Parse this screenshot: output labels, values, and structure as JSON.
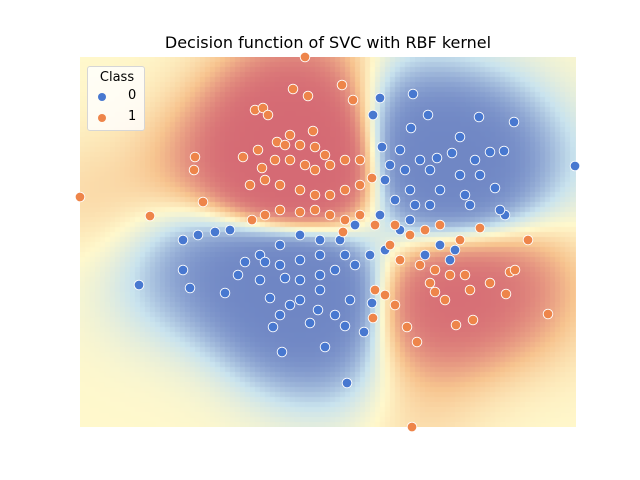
{
  "chart_data": {
    "type": "scatter",
    "title": "Decision function of SVC with RBF kernel",
    "axes_visible": false,
    "background": "heatmap of SVC decision function (blue = class 0, red = class 1)",
    "xlim": [
      -2.48,
      2.48
    ],
    "ylim": [
      -1.85,
      1.85
    ],
    "legend": {
      "title": "Class",
      "placement": "top-left"
    },
    "colors": {
      "class0": "#4878d0",
      "class1": "#ee854a",
      "bg_negative": "#6f86c4",
      "bg_neutral": "#fff8cc",
      "bg_positive": "#d56a74"
    },
    "series": [
      {
        "name": "0",
        "points": [
          [
            0.52,
            1.44
          ],
          [
            0.85,
            1.48
          ],
          [
            0.45,
            1.27
          ],
          [
            1.0,
            1.27
          ],
          [
            0.83,
            1.14
          ],
          [
            1.32,
            1.05
          ],
          [
            1.51,
            1.25
          ],
          [
            1.86,
            1.2
          ],
          [
            2.47,
            0.76
          ],
          [
            0.54,
            0.95
          ],
          [
            0.72,
            0.92
          ],
          [
            1.24,
            0.89
          ],
          [
            1.62,
            0.9
          ],
          [
            1.76,
            0.91
          ],
          [
            1.09,
            0.84
          ],
          [
            0.92,
            0.82
          ],
          [
            1.47,
            0.82
          ],
          [
            0.62,
            0.77
          ],
          [
            0.77,
            0.72
          ],
          [
            1.02,
            0.72
          ],
          [
            1.32,
            0.67
          ],
          [
            1.52,
            0.67
          ],
          [
            1.67,
            0.54
          ],
          [
            0.57,
            0.62
          ],
          [
            0.82,
            0.52
          ],
          [
            1.12,
            0.52
          ],
          [
            1.37,
            0.47
          ],
          [
            1.42,
            0.37
          ],
          [
            1.77,
            0.27
          ],
          [
            1.72,
            0.32
          ],
          [
            1.02,
            0.37
          ],
          [
            0.87,
            0.37
          ],
          [
            0.67,
            0.42
          ],
          [
            0.52,
            0.27
          ],
          [
            0.27,
            0.17
          ],
          [
            0.12,
            0.02
          ],
          [
            -0.08,
            0.02
          ],
          [
            -0.28,
            0.07
          ],
          [
            -0.48,
            -0.03
          ],
          [
            -0.68,
            -0.13
          ],
          [
            -0.98,
            0.12
          ],
          [
            -1.13,
            0.1
          ],
          [
            -1.3,
            0.07
          ],
          [
            -1.45,
            0.02
          ],
          [
            -1.45,
            -0.28
          ],
          [
            -1.38,
            -0.46
          ],
          [
            -1.89,
            -0.43
          ],
          [
            -1.03,
            -0.51
          ],
          [
            -0.9,
            -0.33
          ],
          [
            -0.83,
            -0.2
          ],
          [
            -0.63,
            -0.2
          ],
          [
            -0.48,
            -0.23
          ],
          [
            -0.28,
            -0.18
          ],
          [
            -0.08,
            -0.13
          ],
          [
            0.17,
            -0.13
          ],
          [
            0.27,
            -0.23
          ],
          [
            0.42,
            -0.13
          ],
          [
            0.57,
            -0.08
          ],
          [
            -0.28,
            -0.38
          ],
          [
            -0.43,
            -0.36
          ],
          [
            -0.08,
            -0.48
          ],
          [
            0.07,
            -0.28
          ],
          [
            -0.28,
            -0.58
          ],
          [
            -0.38,
            -0.63
          ],
          [
            -0.58,
            -0.56
          ],
          [
            -0.48,
            -0.73
          ],
          [
            -0.18,
            -0.81
          ],
          [
            -0.1,
            -0.68
          ],
          [
            -0.55,
            -0.85
          ],
          [
            -0.46,
            -1.1
          ],
          [
            -0.03,
            -1.05
          ],
          [
            0.17,
            -0.84
          ],
          [
            0.07,
            -0.73
          ],
          [
            0.36,
            -0.9
          ],
          [
            0.44,
            -0.61
          ],
          [
            0.19,
            -1.41
          ],
          [
            0.22,
            -0.58
          ],
          [
            -0.08,
            -0.33
          ],
          [
            -0.68,
            -0.38
          ],
          [
            0.97,
            -0.13
          ],
          [
            1.12,
            -0.03
          ],
          [
            1.27,
            -0.08
          ],
          [
            1.22,
            -0.18
          ],
          [
            0.72,
            0.12
          ],
          [
            0.82,
            0.22
          ]
        ]
      },
      {
        "name": "1",
        "points": [
          [
            -0.23,
            1.85
          ],
          [
            0.14,
            1.57
          ],
          [
            -0.35,
            1.53
          ],
          [
            -0.2,
            1.46
          ],
          [
            0.25,
            1.42
          ],
          [
            -0.73,
            1.32
          ],
          [
            -0.65,
            1.34
          ],
          [
            -0.6,
            1.27
          ],
          [
            -0.15,
            1.11
          ],
          [
            -0.38,
            1.07
          ],
          [
            -0.51,
            1.0
          ],
          [
            -0.43,
            0.97
          ],
          [
            -0.28,
            0.97
          ],
          [
            -0.13,
            0.95
          ],
          [
            -0.03,
            0.87
          ],
          [
            -0.85,
            0.85
          ],
          [
            -0.7,
            0.92
          ],
          [
            -1.33,
            0.85
          ],
          [
            -1.34,
            0.72
          ],
          [
            -0.66,
            0.74
          ],
          [
            -0.53,
            0.82
          ],
          [
            -0.38,
            0.82
          ],
          [
            -0.23,
            0.77
          ],
          [
            -0.13,
            0.72
          ],
          [
            0.02,
            0.77
          ],
          [
            0.17,
            0.82
          ],
          [
            0.32,
            0.82
          ],
          [
            -0.78,
            0.57
          ],
          [
            -0.63,
            0.62
          ],
          [
            -0.48,
            0.57
          ],
          [
            -0.28,
            0.52
          ],
          [
            -0.13,
            0.47
          ],
          [
            0.02,
            0.47
          ],
          [
            0.17,
            0.52
          ],
          [
            0.32,
            0.57
          ],
          [
            0.44,
            0.64
          ],
          [
            -2.48,
            0.45
          ],
          [
            -1.78,
            0.26
          ],
          [
            -1.25,
            0.4
          ],
          [
            -0.76,
            0.22
          ],
          [
            -0.63,
            0.27
          ],
          [
            -0.48,
            0.32
          ],
          [
            -0.28,
            0.3
          ],
          [
            -0.13,
            0.32
          ],
          [
            0.02,
            0.27
          ],
          [
            0.17,
            0.22
          ],
          [
            0.32,
            0.27
          ],
          [
            0.47,
            0.17
          ],
          [
            0.67,
            0.17
          ],
          [
            0.82,
            0.07
          ],
          [
            0.97,
            0.12
          ],
          [
            1.12,
            0.17
          ],
          [
            1.32,
            0.02
          ],
          [
            1.52,
            0.14
          ],
          [
            2.0,
            0.02
          ],
          [
            0.62,
            -0.03
          ],
          [
            0.72,
            -0.18
          ],
          [
            0.92,
            -0.23
          ],
          [
            1.07,
            -0.28
          ],
          [
            1.22,
            -0.33
          ],
          [
            1.37,
            -0.33
          ],
          [
            1.62,
            -0.41
          ],
          [
            1.42,
            -0.48
          ],
          [
            1.82,
            -0.3
          ],
          [
            1.87,
            -0.28
          ],
          [
            1.78,
            -0.52
          ],
          [
            1.02,
            -0.41
          ],
          [
            1.07,
            -0.5
          ],
          [
            1.17,
            -0.58
          ],
          [
            0.47,
            -0.48
          ],
          [
            0.57,
            -0.53
          ],
          [
            0.67,
            -0.63
          ],
          [
            0.45,
            -0.76
          ],
          [
            0.79,
            -0.85
          ],
          [
            0.89,
            -1.0
          ],
          [
            1.28,
            -0.83
          ],
          [
            1.45,
            -0.78
          ],
          [
            2.2,
            -0.72
          ],
          [
            0.84,
            -1.85
          ],
          [
            0.15,
            0.1
          ]
        ]
      }
    ]
  }
}
